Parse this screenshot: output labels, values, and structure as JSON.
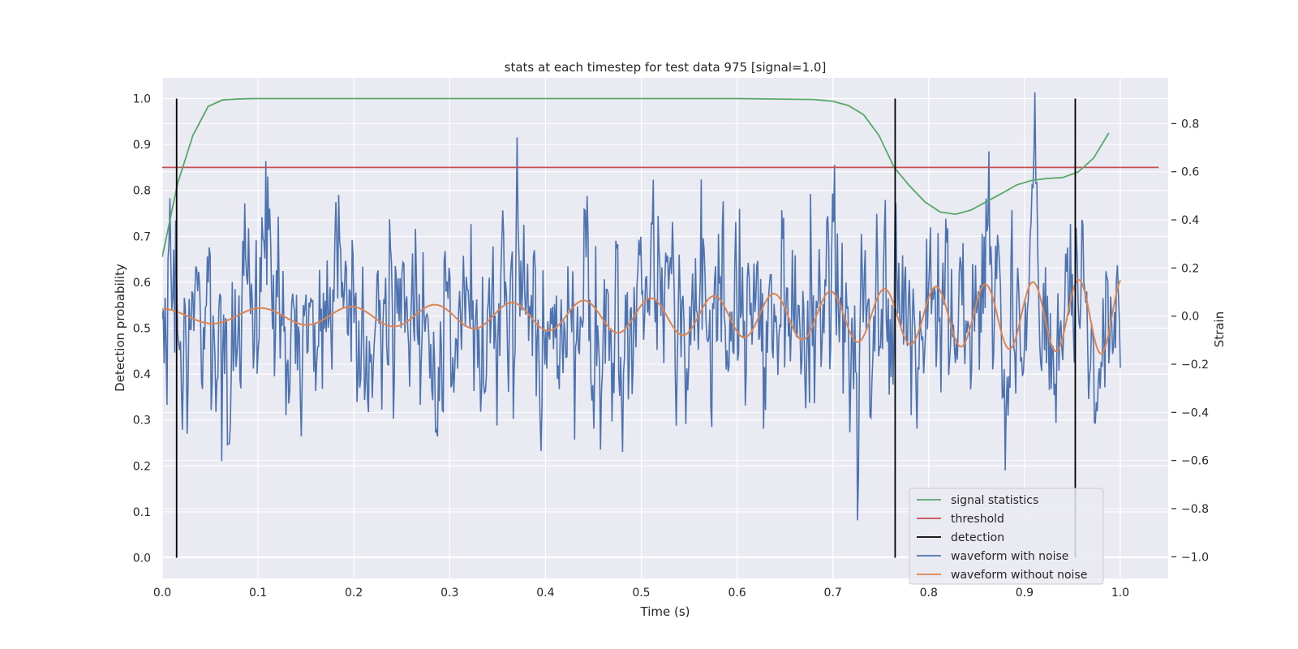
{
  "chart_data": {
    "type": "line",
    "title": "stats at each timestep for test data 975 [signal=1.0]",
    "xlabel": "Time (s)",
    "ylabel": "Detection probability",
    "y2label": "Strain",
    "xlim": [
      0.0,
      1.05
    ],
    "ylim": [
      -0.045,
      1.045
    ],
    "y2lim": [
      -1.09,
      0.99
    ],
    "x_ticks": [
      "0.0",
      "0.1",
      "0.2",
      "0.3",
      "0.4",
      "0.5",
      "0.6",
      "0.7",
      "0.8",
      "0.9",
      "1.0"
    ],
    "y_ticks": [
      "0.0",
      "0.1",
      "0.2",
      "0.3",
      "0.4",
      "0.5",
      "0.6",
      "0.7",
      "0.8",
      "0.9",
      "1.0"
    ],
    "y2_ticks": [
      "−1.0",
      "−0.8",
      "−0.6",
      "−0.4",
      "−0.2",
      "0.0",
      "0.2",
      "0.4",
      "0.6",
      "0.8"
    ],
    "grid": true,
    "legend_position": "lower right",
    "colors": {
      "signal_statistics": "#55a868",
      "threshold": "#c44e52",
      "detection": "#000000",
      "waveform_noise": "#4c72b0",
      "waveform_clean": "#dd8452",
      "plot_bg": "#eaeaf2",
      "grid": "#ffffff"
    },
    "series": [
      {
        "name": "signal statistics",
        "axis": "left",
        "x": [
          0.0,
          0.016,
          0.032,
          0.048,
          0.063,
          0.079,
          0.095,
          0.15,
          0.3,
          0.45,
          0.6,
          0.68,
          0.7,
          0.716,
          0.732,
          0.748,
          0.764,
          0.78,
          0.796,
          0.812,
          0.828,
          0.844,
          0.86,
          0.876,
          0.892,
          0.908,
          0.924,
          0.94,
          0.956,
          0.972,
          0.988
        ],
        "values": [
          0.655,
          0.815,
          0.92,
          0.983,
          0.997,
          0.999,
          1.0,
          1.0,
          1.0,
          1.0,
          1.0,
          0.998,
          0.994,
          0.985,
          0.965,
          0.92,
          0.85,
          0.81,
          0.775,
          0.753,
          0.748,
          0.757,
          0.775,
          0.793,
          0.812,
          0.822,
          0.826,
          0.828,
          0.84,
          0.87,
          0.925
        ]
      },
      {
        "name": "threshold",
        "axis": "left",
        "x": [
          0.0,
          1.04
        ],
        "values": [
          0.85,
          0.85
        ]
      },
      {
        "name": "detection",
        "axis": "left",
        "type": "vlines",
        "x": [
          0.015,
          0.765,
          0.953
        ],
        "y_range": [
          0.0,
          1.0
        ]
      },
      {
        "name": "waveform with noise",
        "axis": "right",
        "generated": "dense noisy trace (~1000 samples) with amplitude roughly ±0.3 (peaks up to ±0.9) overlaid on the clean chirp",
        "x_range": [
          0.0,
          1.0
        ],
        "sigma": 0.28
      },
      {
        "name": "waveform without noise",
        "axis": "right",
        "generated": "chirp with increasing amplitude and frequency",
        "x_range": [
          0.0,
          1.0
        ],
        "amplitude_start": 0.03,
        "amplitude_end": 0.16,
        "frequency_start_hz": 9.5,
        "frequency_end_hz": 22.0
      }
    ],
    "legend": [
      "signal statistics",
      "threshold",
      "detection",
      "waveform with noise",
      "waveform without noise"
    ]
  }
}
